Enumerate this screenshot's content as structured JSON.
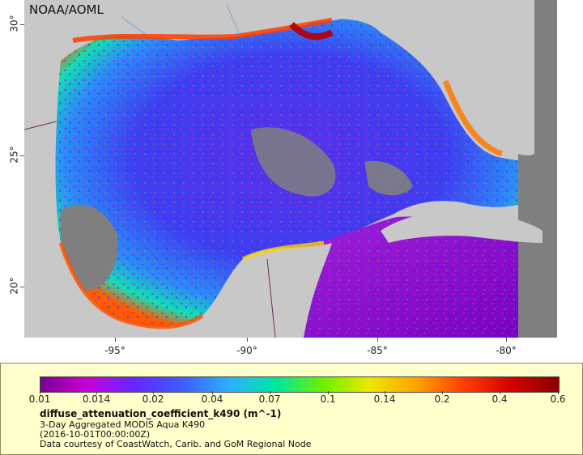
{
  "map": {
    "agency": "NOAA/AOML",
    "x_ticks": [
      "-95°",
      "-90°",
      "-85°",
      "-80°"
    ],
    "y_ticks": [
      "30°",
      "25°",
      "20°"
    ],
    "colors": {
      "land": "#c8c8c8",
      "nodata": "#7f7f7f",
      "coast": "#6a6a6a",
      "borders": "#6a2a5a",
      "rivers": "#7aa7d0"
    }
  },
  "legend": {
    "colorbar_stops": [
      "#7a0090",
      "#c800d8",
      "#6428ff",
      "#3c5cff",
      "#2cb0ff",
      "#00e6a0",
      "#6cf000",
      "#f0e600",
      "#ffa000",
      "#ff3c00",
      "#d20000",
      "#8c0000"
    ],
    "ticks": [
      "0.01",
      "0.014",
      "0.02",
      "0.04",
      "0.07",
      "0.1",
      "0.14",
      "0.2",
      "0.4",
      "0.6"
    ],
    "variable": "diffuse_attenuation_coefficient_k490 (m^-1)",
    "line1": "3-Day Aggregated MODIS Aqua K490",
    "line2": "(2016-10-01T00:00:00Z)",
    "line3": "Data courtesy of CoastWatch, Carib. and GoM Regional Node"
  }
}
